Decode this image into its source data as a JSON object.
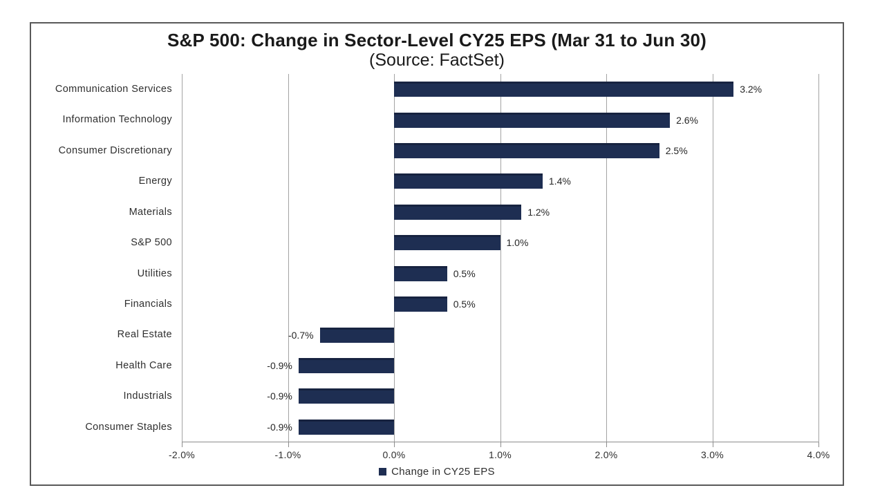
{
  "chart_data": {
    "type": "bar",
    "orientation": "horizontal",
    "title": "S&P 500: Change in Sector-Level CY25 EPS (Mar 31 to Jun 30)",
    "subtitle": "(Source: FactSet)",
    "categories": [
      "Communication Services",
      "Information Technology",
      "Consumer Discretionary",
      "Energy",
      "Materials",
      "S&P 500",
      "Utilities",
      "Financials",
      "Real Estate",
      "Health Care",
      "Industrials",
      "Consumer Staples"
    ],
    "values": [
      3.2,
      2.6,
      2.5,
      1.4,
      1.2,
      1.0,
      0.5,
      0.5,
      -0.7,
      -0.9,
      -0.9,
      -0.9
    ],
    "data_labels": [
      "3.2%",
      "2.6%",
      "2.5%",
      "1.4%",
      "1.2%",
      "1.0%",
      "0.5%",
      "0.5%",
      "-0.7%",
      "-0.9%",
      "-0.9%",
      "-0.9%"
    ],
    "xlim": [
      -2.0,
      4.0
    ],
    "x_ticks": [
      -2,
      -1,
      0,
      1,
      2,
      3,
      4
    ],
    "x_tick_labels": [
      "-2.0%",
      "-1.0%",
      "0.0%",
      "1.0%",
      "2.0%",
      "3.0%",
      "4.0%"
    ],
    "grid": "vertical",
    "legend": {
      "label": "Change in CY25 EPS",
      "position": "bottom-center"
    },
    "colors": {
      "bar": "#1e2e52",
      "gridline": "#a3a3a3",
      "axis": "#8c8c8c",
      "text": "#262626",
      "frame_border": "#595959"
    }
  }
}
